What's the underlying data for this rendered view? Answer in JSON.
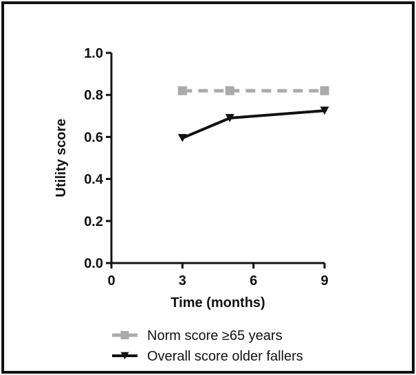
{
  "chart_data": {
    "type": "line",
    "xlabel": "Time (months)",
    "ylabel": "Utility score",
    "xlim": [
      0,
      9
    ],
    "ylim": [
      0.0,
      1.0
    ],
    "x_ticks": [
      "0",
      "3",
      "6",
      "9"
    ],
    "y_ticks": [
      "0.0",
      "0.2",
      "0.4",
      "0.6",
      "0.8",
      "1.0"
    ],
    "legend_position": "bottom",
    "grid": false,
    "series": [
      {
        "name": "Norm score ≥65 years",
        "x": [
          3,
          5,
          9
        ],
        "y": [
          0.82,
          0.82,
          0.82
        ],
        "color": "#aaaaaa",
        "line_style": "dashed",
        "marker": "square"
      },
      {
        "name": "Overall score older fallers",
        "x": [
          3,
          5,
          9
        ],
        "y": [
          0.595,
          0.69,
          0.725
        ],
        "color": "#111111",
        "line_style": "solid",
        "marker": "triangle-down"
      }
    ]
  }
}
